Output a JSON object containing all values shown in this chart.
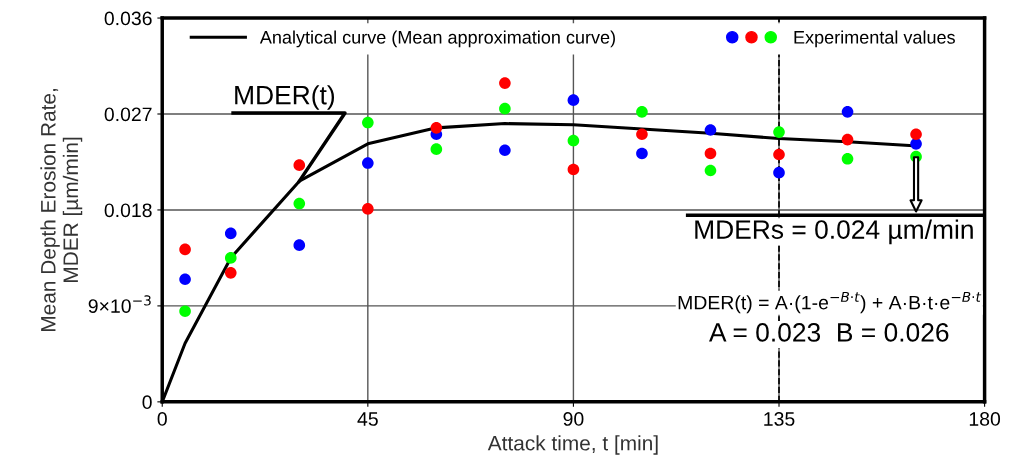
{
  "chart_data": {
    "type": "scatter",
    "xlabel": "Attack time, t [min]",
    "ylabel": "Mean Depth Erosion Rate,\nMDER [µm/min]",
    "xlim": [
      0,
      180
    ],
    "xticks": [
      0,
      45,
      90,
      135,
      180
    ],
    "ylim": [
      0,
      0.036
    ],
    "yticks": [
      0,
      {
        "value": 0.009,
        "label": "9×10$^{−3}$"
      },
      0.018,
      0.027,
      0.036
    ],
    "grid": true,
    "legend": "top",
    "marker": "circle",
    "series": [
      {
        "name": "Analytical curve (Mean approximation curve)",
        "type": "line",
        "color": "#000000",
        "marker": "none",
        "x": [
          0,
          5,
          15,
          30,
          45,
          60,
          75,
          90,
          105,
          120,
          135,
          150,
          165
        ],
        "values": [
          0,
          0.0055,
          0.0135,
          0.0207,
          0.0242,
          0.0257,
          0.0261,
          0.026,
          0.0256,
          0.0252,
          0.0247,
          0.0244,
          0.024
        ]
      },
      {
        "color": "#0000ff",
        "x": [
          5,
          15,
          30,
          45,
          60,
          75,
          90,
          105,
          120,
          135,
          150,
          165
        ],
        "values": [
          0.0115,
          0.0158,
          0.0147,
          0.0224,
          0.0251,
          0.0236,
          0.0283,
          0.0233,
          0.0255,
          0.0215,
          0.0272,
          0.0242
        ]
      },
      {
        "color": "#ff0000",
        "x": [
          5,
          15,
          30,
          45,
          60,
          75,
          90,
          105,
          120,
          135,
          150,
          165
        ],
        "values": [
          0.0143,
          0.0121,
          0.0222,
          0.0181,
          0.0257,
          0.0299,
          0.0218,
          0.0251,
          0.0233,
          0.0232,
          0.0246,
          0.0251
        ]
      },
      {
        "name": "Experimental values",
        "color": "#00ff00",
        "x": [
          5,
          15,
          30,
          45,
          60,
          75,
          90,
          105,
          120,
          135,
          150,
          165
        ],
        "values": [
          0.0085,
          0.0135,
          0.0186,
          0.0262,
          0.0237,
          0.0275,
          0.0245,
          0.0272,
          0.0217,
          0.0253,
          0.0228,
          0.023
        ]
      }
    ],
    "ref_lines": [
      {
        "axis": "x",
        "value": 135,
        "color": "#000000",
        "line_style": "dashed"
      }
    ],
    "annotations": [
      {
        "text": "MDER(t)",
        "x": 30,
        "y": 0.0207
      },
      {
        "text": "MDERs = 0.024 µm/min",
        "x": 165,
        "y": 0.024
      },
      "MDER(t) = A·(1-e$^{−B·t}$) + A·B·t·e$^{−B·t}$",
      "A = 0.023  B = 0.026"
    ]
  }
}
